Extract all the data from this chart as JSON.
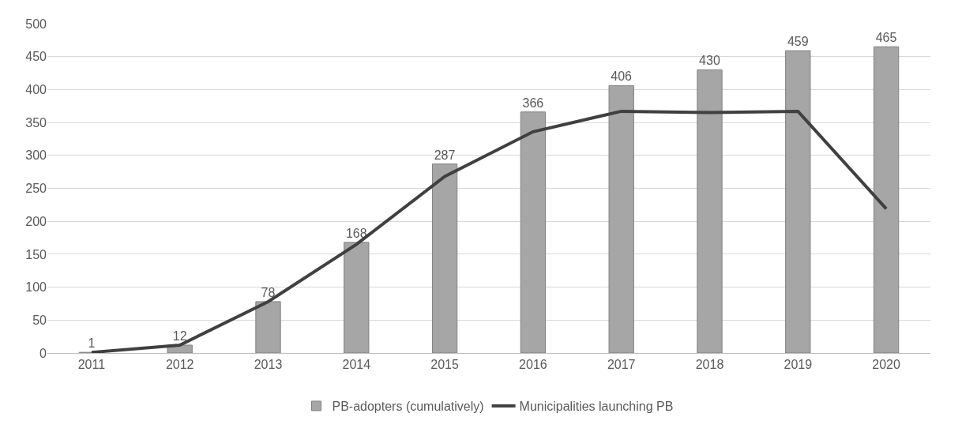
{
  "chart_data": {
    "type": "bar",
    "categories": [
      "2011",
      "2012",
      "2013",
      "2014",
      "2015",
      "2016",
      "2017",
      "2018",
      "2019",
      "2020"
    ],
    "series": [
      {
        "name": "PB-adopters (cumulatively)",
        "color": "#a6a6a6",
        "values": [
          1,
          12,
          78,
          168,
          287,
          366,
          406,
          430,
          459,
          465
        ],
        "value_labels": [
          "1",
          "12",
          "78",
          "168",
          "287",
          "366",
          "406",
          "430",
          "459",
          "465"
        ]
      },
      {
        "name": "Municipalities launching PB",
        "type": "line",
        "color": "#404040",
        "values": [
          1,
          12,
          78,
          165,
          268,
          336,
          367,
          365,
          367,
          219
        ]
      }
    ],
    "ylim": [
      0,
      500
    ],
    "yticks": [
      0,
      50,
      100,
      150,
      200,
      250,
      300,
      350,
      400,
      450,
      500
    ],
    "grid": "y",
    "legend": "bottom",
    "marker": "none",
    "line_style": "solid"
  }
}
